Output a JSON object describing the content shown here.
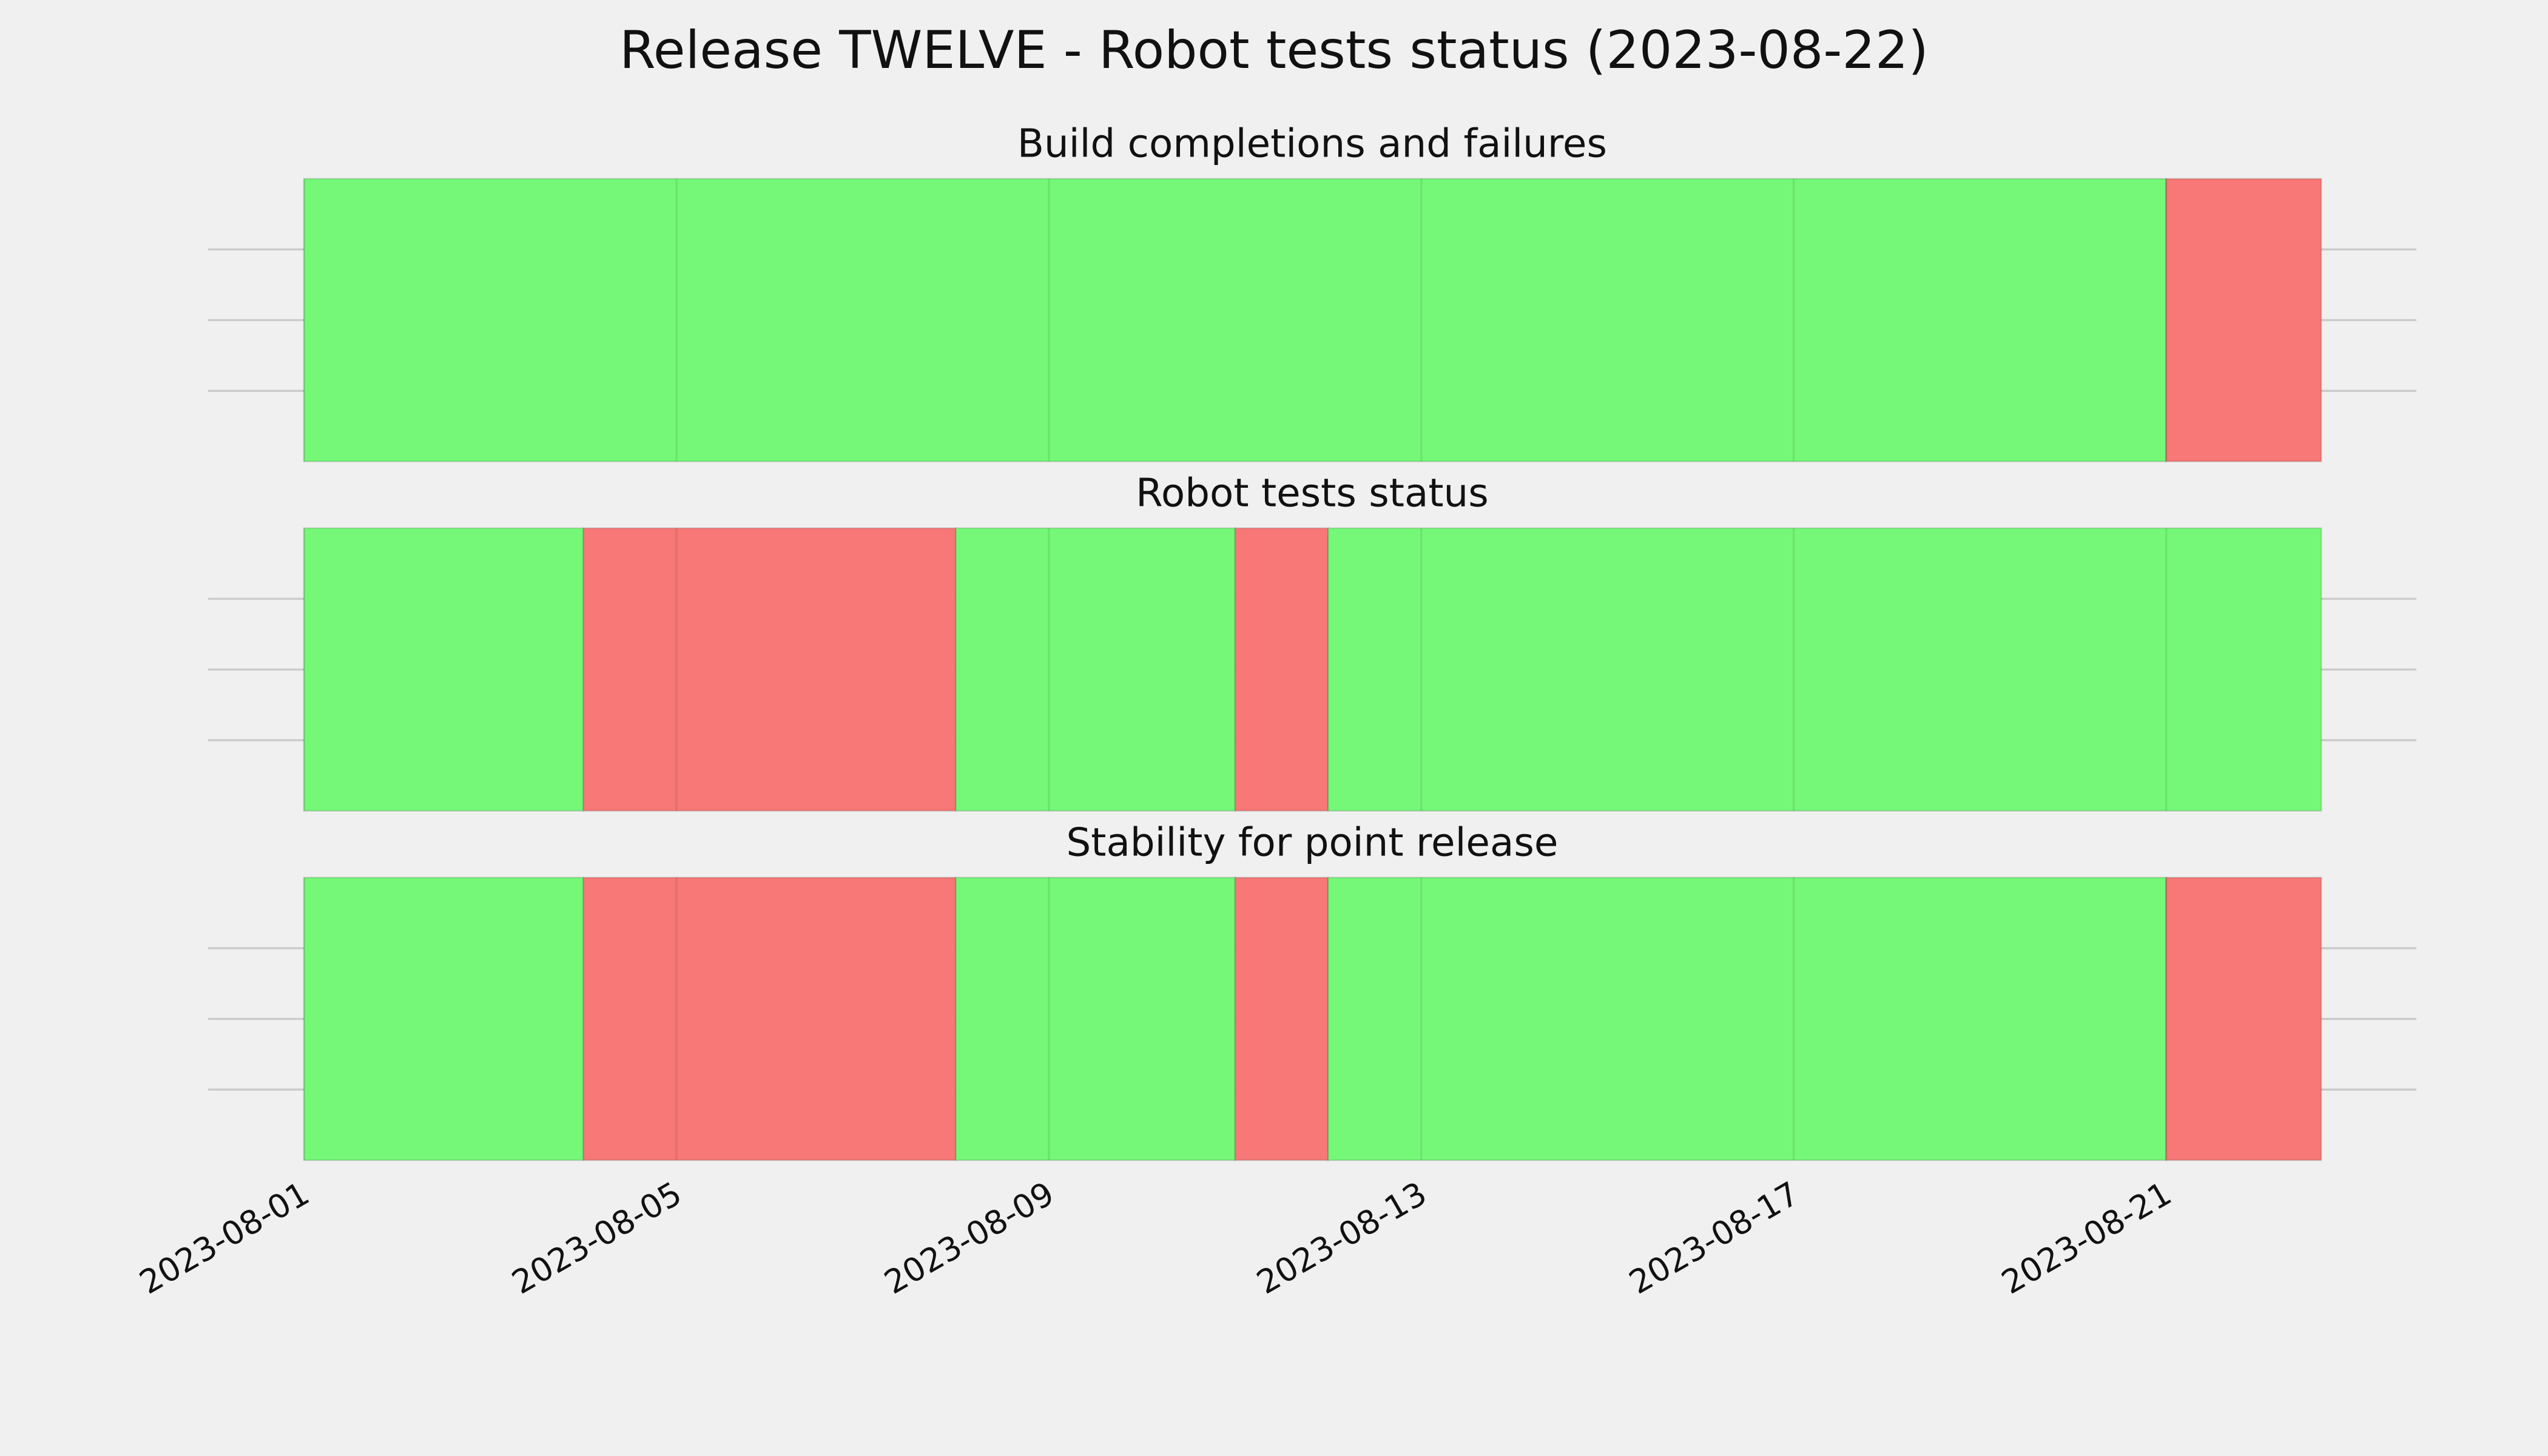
{
  "title": "Release TWELVE - Robot tests status (2023-08-22)",
  "chart_data": [
    {
      "type": "span",
      "title": "Build completions and failures",
      "xlim": [
        "2023-07-30T23:15",
        "2023-08-23T16:30"
      ],
      "xticks": [
        "2023-08-01",
        "2023-08-05",
        "2023-08-09",
        "2023-08-13",
        "2023-08-17",
        "2023-08-21"
      ],
      "ylim": [
        0,
        1
      ],
      "yticks": [
        0.25,
        0.5,
        0.75
      ],
      "grid": true,
      "segments": [
        {
          "start": "2023-08-01",
          "end": "2023-08-21",
          "color": "#75f878"
        },
        {
          "start": "2023-08-21",
          "end": "2023-08-22T16:00",
          "color": "#f77876"
        }
      ]
    },
    {
      "type": "span",
      "title": "Robot tests status",
      "xlim": [
        "2023-07-30T23:15",
        "2023-08-23T16:30"
      ],
      "xticks": [
        "2023-08-01",
        "2023-08-05",
        "2023-08-09",
        "2023-08-13",
        "2023-08-17",
        "2023-08-21"
      ],
      "ylim": [
        0,
        1
      ],
      "yticks": [
        0.25,
        0.5,
        0.75
      ],
      "grid": true,
      "segments": [
        {
          "start": "2023-08-01",
          "end": "2023-08-04",
          "color": "#75f878"
        },
        {
          "start": "2023-08-04",
          "end": "2023-08-08",
          "color": "#f77876"
        },
        {
          "start": "2023-08-08",
          "end": "2023-08-11",
          "color": "#75f878"
        },
        {
          "start": "2023-08-11",
          "end": "2023-08-12",
          "color": "#f77876"
        },
        {
          "start": "2023-08-12",
          "end": "2023-08-22T16:00",
          "color": "#75f878"
        }
      ]
    },
    {
      "type": "span",
      "title": "Stability for point release",
      "xlim": [
        "2023-07-30T23:15",
        "2023-08-23T16:30"
      ],
      "xticks": [
        "2023-08-01",
        "2023-08-05",
        "2023-08-09",
        "2023-08-13",
        "2023-08-17",
        "2023-08-21"
      ],
      "ylim": [
        0,
        1
      ],
      "yticks": [
        0.25,
        0.5,
        0.75
      ],
      "grid": true,
      "segments": [
        {
          "start": "2023-08-01",
          "end": "2023-08-04",
          "color": "#75f878"
        },
        {
          "start": "2023-08-04",
          "end": "2023-08-08",
          "color": "#f77876"
        },
        {
          "start": "2023-08-08",
          "end": "2023-08-11",
          "color": "#75f878"
        },
        {
          "start": "2023-08-11",
          "end": "2023-08-12",
          "color": "#f77876"
        },
        {
          "start": "2023-08-12",
          "end": "2023-08-21",
          "color": "#75f878"
        },
        {
          "start": "2023-08-21",
          "end": "2023-08-22T16:00",
          "color": "#f77876"
        }
      ]
    }
  ]
}
